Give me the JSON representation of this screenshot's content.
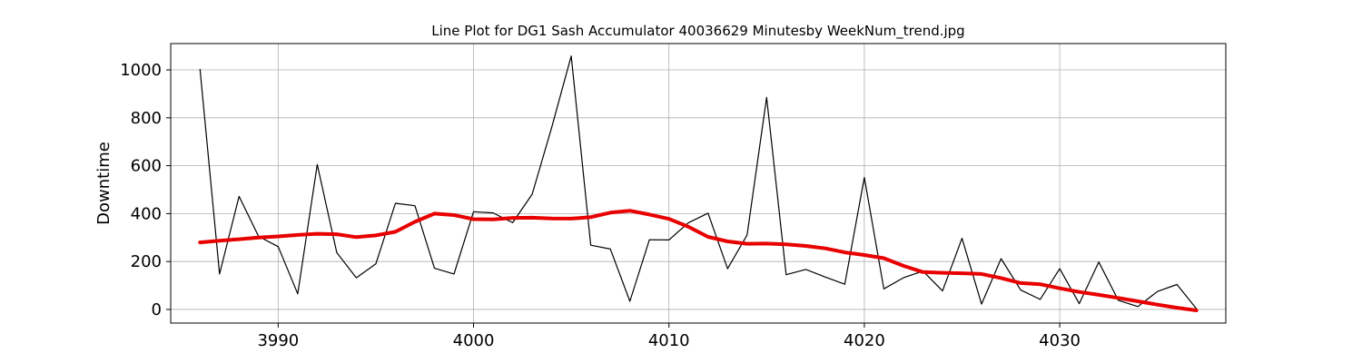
{
  "chart_data": {
    "type": "line",
    "title": "Line Plot for DG1 Sash Accumulator 40036629 Minutesby WeekNum_trend.jpg",
    "xlabel": "",
    "ylabel": "Downtime",
    "xlim": [
      3984.5,
      4038.5
    ],
    "ylim": [
      -57,
      1110
    ],
    "xticks": [
      3990,
      4000,
      4010,
      4020,
      4030
    ],
    "yticks": [
      0,
      200,
      400,
      600,
      800,
      1000
    ],
    "grid": true,
    "legend": "none",
    "series": [
      {
        "role": "raw",
        "color": "#000000",
        "x": [
          3986,
          3987,
          3988,
          3989,
          3990,
          3991,
          3992,
          3993,
          3994,
          3995,
          3996,
          3997,
          3998,
          3999,
          4000,
          4001,
          4002,
          4003,
          4004,
          4005,
          4006,
          4007,
          4008,
          4009,
          4010,
          4011,
          4012,
          4013,
          4014,
          4015,
          4016,
          4017,
          4018,
          4019,
          4020,
          4021,
          4022,
          4023,
          4024,
          4025,
          4026,
          4027,
          4028,
          4029,
          4030,
          4031,
          4032,
          4033,
          4034,
          4035,
          4036,
          4037
        ],
        "y": [
          1002,
          148,
          472,
          305,
          262,
          65,
          605,
          237,
          132,
          190,
          443,
          433,
          172,
          148,
          408,
          403,
          362,
          481,
          760,
          1058,
          268,
          252,
          34,
          291,
          290,
          362,
          402,
          170,
          311,
          885,
          145,
          167,
          135,
          105,
          551,
          86,
          132,
          160,
          77,
          297,
          22,
          212,
          81,
          42,
          170,
          24,
          198,
          38,
          12,
          75,
          104,
          3
        ]
      },
      {
        "role": "trend",
        "color": "#e80000",
        "x": [
          3986,
          3987,
          3988,
          3989,
          3990,
          3991,
          3992,
          3993,
          3994,
          3995,
          3996,
          3997,
          3998,
          3999,
          4000,
          4001,
          4002,
          4003,
          4004,
          4005,
          4006,
          4007,
          4008,
          4009,
          4010,
          4011,
          4012,
          4013,
          4014,
          4015,
          4016,
          4017,
          4018,
          4019,
          4020,
          4021,
          4022,
          4023,
          4024,
          4025,
          4026,
          4027,
          4028,
          4029,
          4030,
          4031,
          4032,
          4033,
          4034,
          4035,
          4036,
          4037
        ],
        "y": [
          280,
          287,
          293,
          300,
          305,
          311,
          316,
          314,
          302,
          309,
          324,
          366,
          400,
          394,
          377,
          376,
          382,
          383,
          380,
          379,
          385,
          404,
          412,
          396,
          378,
          345,
          303,
          284,
          274,
          275,
          272,
          265,
          255,
          238,
          227,
          214,
          182,
          156,
          153,
          151,
          148,
          131,
          110,
          105,
          88,
          73,
          61,
          48,
          34,
          20,
          7,
          -4
        ]
      }
    ]
  }
}
